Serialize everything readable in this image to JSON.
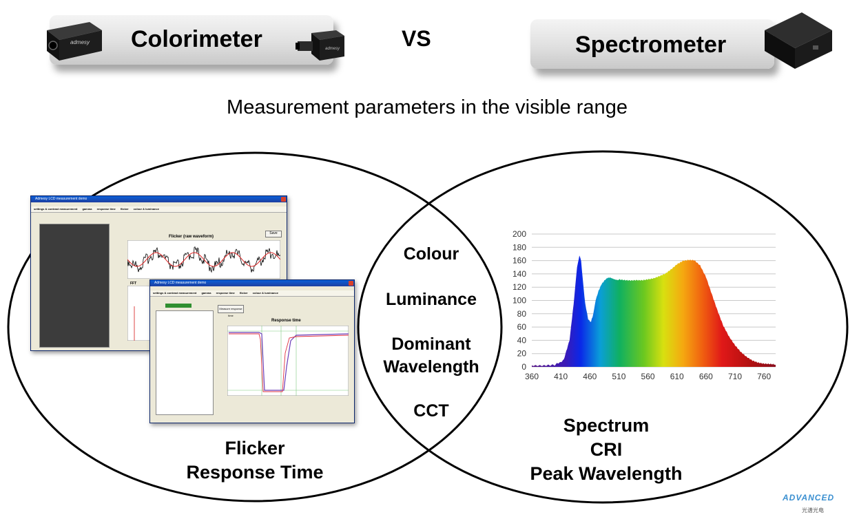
{
  "header": {
    "left_label": "Colorimeter",
    "vs": "VS",
    "right_label": "Spectrometer"
  },
  "subtitle": "Measurement parameters in the visible range",
  "intersection": {
    "items": [
      "Colour",
      "Luminance",
      "Dominant\nWavelength",
      "CCT"
    ]
  },
  "colorimeter_only": [
    "Flicker",
    "Response Time"
  ],
  "spectrometer_only": [
    "Spectrum",
    "CRI",
    "Peak Wavelength"
  ],
  "window_flicker": {
    "title": "Admesy LCD measurement demo",
    "tabs": [
      "settings & contrast measurement",
      "gamma",
      "response time",
      "flicker",
      "colour & luminance"
    ],
    "plot_title": "Flicker (raw waveform)",
    "fft_label": "FFT",
    "save_label": "Save"
  },
  "window_response": {
    "title": "Admesy LCD measurement demo",
    "tabs": [
      "settings & contrast measurement",
      "gamma",
      "response time",
      "flicker",
      "colour & luminance"
    ],
    "plot_title": "Response time",
    "button_label": "Measure response time"
  },
  "logo": {
    "text": "ADVANCED",
    "sub": "光谱光电"
  },
  "chart_data": {
    "type": "area",
    "title": "",
    "xlabel": "",
    "ylabel": "",
    "xlim": [
      360,
      780
    ],
    "ylim": [
      0,
      200
    ],
    "x_ticks": [
      360,
      410,
      460,
      510,
      560,
      610,
      660,
      710,
      760
    ],
    "y_ticks": [
      0,
      20,
      40,
      60,
      80,
      100,
      120,
      140,
      160,
      180,
      200
    ],
    "grid": true,
    "x": [
      360,
      380,
      400,
      415,
      425,
      432,
      438,
      442,
      445,
      448,
      452,
      457,
      462,
      466,
      470,
      475,
      480,
      485,
      490,
      495,
      500,
      505,
      510,
      520,
      530,
      540,
      550,
      560,
      570,
      580,
      590,
      600,
      610,
      620,
      630,
      640,
      650,
      660,
      670,
      680,
      690,
      700,
      710,
      720,
      730,
      740,
      750,
      760,
      770,
      780
    ],
    "y": [
      2,
      2,
      3,
      10,
      40,
      95,
      150,
      168,
      160,
      130,
      95,
      72,
      68,
      80,
      100,
      115,
      125,
      130,
      133,
      134,
      133,
      132,
      131,
      130,
      130,
      131,
      131,
      132,
      133,
      136,
      140,
      147,
      155,
      160,
      161,
      160,
      152,
      135,
      110,
      85,
      62,
      45,
      32,
      22,
      15,
      10,
      7,
      5,
      4,
      3
    ]
  },
  "colors": {
    "banner_light": "#f4f4f4",
    "banner_dark": "#c9c9c9",
    "grid": "#c8c8c8",
    "window_title": "#0a5fd8"
  }
}
